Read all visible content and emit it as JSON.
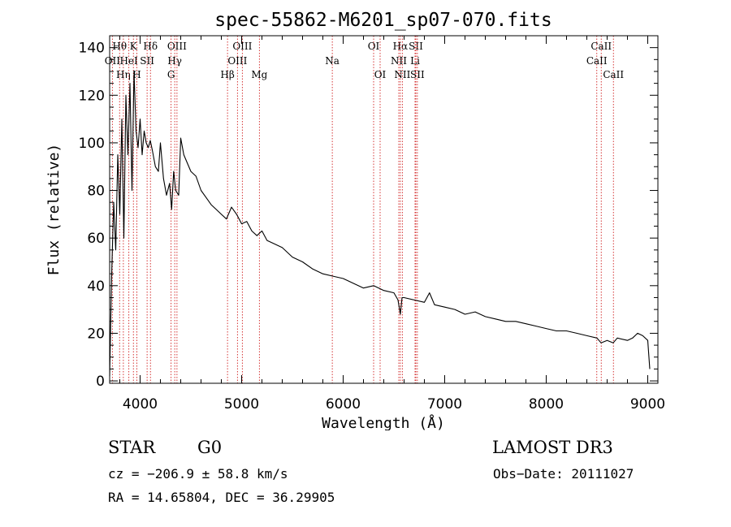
{
  "chart_data": {
    "type": "line",
    "title": "spec-55862-M6201_sp07-070.fits",
    "xlabel": "Wavelength (Å)",
    "ylabel": "Flux (relative)",
    "xlim": [
      3700,
      9100
    ],
    "ylim": [
      -1,
      145
    ],
    "x_ticks": [
      4000,
      5000,
      6000,
      7000,
      8000,
      9000
    ],
    "y_ticks": [
      0,
      20,
      40,
      60,
      80,
      100,
      120,
      140
    ],
    "grid": false,
    "series": [
      {
        "name": "spectrum",
        "x": [
          3700,
          3720,
          3740,
          3760,
          3780,
          3800,
          3820,
          3840,
          3860,
          3880,
          3900,
          3920,
          3940,
          3960,
          3980,
          4000,
          4020,
          4040,
          4060,
          4080,
          4100,
          4120,
          4150,
          4180,
          4200,
          4230,
          4260,
          4290,
          4310,
          4330,
          4350,
          4380,
          4400,
          4430,
          4460,
          4500,
          4550,
          4600,
          4650,
          4700,
          4750,
          4800,
          4850,
          4900,
          4950,
          5000,
          5050,
          5100,
          5150,
          5200,
          5250,
          5300,
          5400,
          5500,
          5600,
          5700,
          5800,
          5900,
          6000,
          6100,
          6200,
          6300,
          6400,
          6500,
          6540,
          6563,
          6580,
          6600,
          6700,
          6800,
          6850,
          6900,
          7000,
          7100,
          7200,
          7300,
          7400,
          7500,
          7600,
          7700,
          7800,
          7900,
          8000,
          8100,
          8200,
          8300,
          8400,
          8500,
          8540,
          8600,
          8660,
          8700,
          8800,
          8850,
          8900,
          8950,
          9000,
          9020
        ],
        "y": [
          2,
          45,
          75,
          55,
          95,
          70,
          110,
          60,
          120,
          95,
          125,
          80,
          130,
          105,
          98,
          110,
          95,
          105,
          100,
          98,
          101,
          97,
          90,
          88,
          100,
          85,
          78,
          83,
          72,
          88,
          80,
          78,
          102,
          95,
          92,
          88,
          86,
          80,
          77,
          74,
          72,
          70,
          68,
          73,
          70,
          66,
          67,
          63,
          61,
          63,
          59,
          58,
          56,
          52,
          50,
          47,
          45,
          44,
          43,
          41,
          39,
          40,
          38,
          37,
          34,
          28,
          35,
          35,
          34,
          33,
          37,
          32,
          31,
          30,
          28,
          29,
          27,
          26,
          25,
          25,
          24,
          23,
          22,
          21,
          21,
          20,
          19,
          18,
          16,
          17,
          16,
          18,
          17,
          18,
          20,
          19,
          17,
          5
        ]
      }
    ],
    "lines": [
      {
        "name": "OII",
        "wl": 3727,
        "row": 2
      },
      {
        "name": "Hθ",
        "wl": 3798,
        "row": 1
      },
      {
        "name": "Hη",
        "wl": 3835,
        "row": 3
      },
      {
        "name": "K",
        "wl": 3934,
        "row": 1
      },
      {
        "name": "HeI",
        "wl": 3889,
        "row": 2
      },
      {
        "name": "H",
        "wl": 3968,
        "row": 3
      },
      {
        "name": "SII",
        "wl": 4069,
        "row": 2
      },
      {
        "name": "Hδ",
        "wl": 4102,
        "row": 1
      },
      {
        "name": "OIII",
        "wl": 4363,
        "row": 1
      },
      {
        "name": "Hγ",
        "wl": 4341,
        "row": 2
      },
      {
        "name": "G",
        "wl": 4305,
        "row": 3
      },
      {
        "name": "OIII",
        "wl": 5007,
        "row": 1
      },
      {
        "name": "OIII",
        "wl": 4959,
        "row": 2
      },
      {
        "name": "Hβ",
        "wl": 4861,
        "row": 3
      },
      {
        "name": "Mg",
        "wl": 5175,
        "row": 3
      },
      {
        "name": "Na",
        "wl": 5893,
        "row": 2
      },
      {
        "name": "OI",
        "wl": 6300,
        "row": 1
      },
      {
        "name": "OI",
        "wl": 6364,
        "row": 3
      },
      {
        "name": "Hα",
        "wl": 6563,
        "row": 1
      },
      {
        "name": "SII",
        "wl": 6716,
        "row": 1
      },
      {
        "name": "NII",
        "wl": 6548,
        "row": 2
      },
      {
        "name": "Li",
        "wl": 6708,
        "row": 2
      },
      {
        "name": "NII",
        "wl": 6583,
        "row": 3
      },
      {
        "name": "SII",
        "wl": 6731,
        "row": 3
      },
      {
        "name": "CaII",
        "wl": 8542,
        "row": 1
      },
      {
        "name": "CaII",
        "wl": 8498,
        "row": 2
      },
      {
        "name": "CaII",
        "wl": 8662,
        "row": 3
      }
    ],
    "colors": {
      "spectrum": "#000000",
      "line_marker": "#d02020",
      "axes": "#000000"
    }
  },
  "footer": {
    "object_class": "STAR",
    "subclass": "G0",
    "survey": "LAMOST DR3",
    "cz": "cz = −206.9 ± 58.8 km/s",
    "obs_date": "Obs−Date: 20111027",
    "coords": "RA =  14.65804, DEC =  36.29905"
  }
}
